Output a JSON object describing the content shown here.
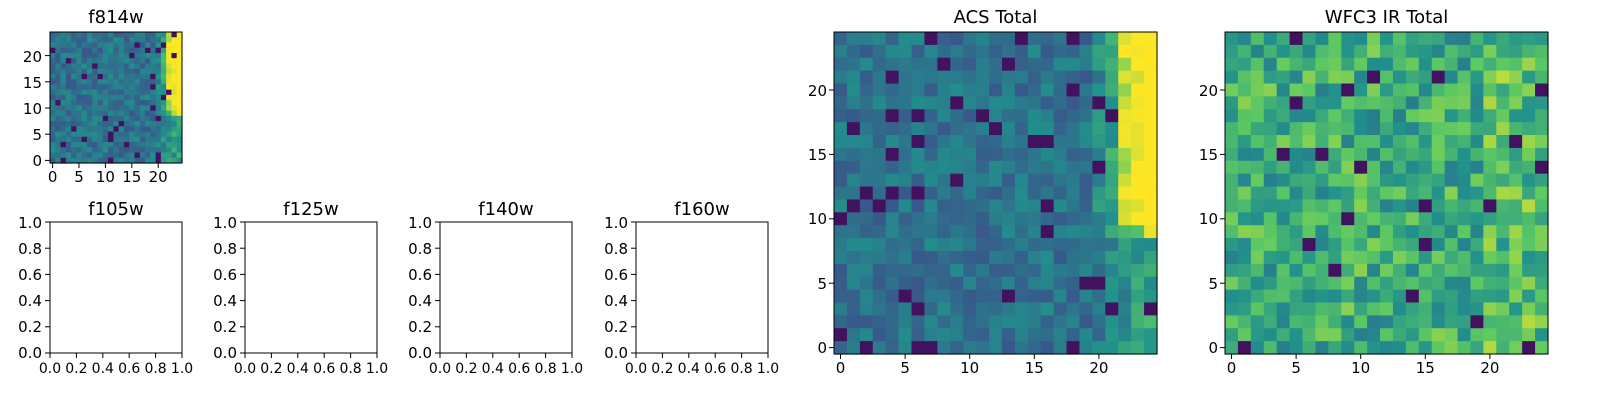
{
  "chart_data": [
    {
      "type": "heatmap",
      "title": "f814w",
      "colormap": "viridis",
      "x_ticks": [
        "0",
        "5",
        "10",
        "15",
        "20"
      ],
      "y_ticks": [
        "0",
        "5",
        "10",
        "15",
        "20"
      ],
      "xlim": [
        -0.5,
        24.5
      ],
      "ylim": [
        -0.5,
        24.5
      ],
      "grid": false
    },
    {
      "type": "heatmap",
      "title": "f105w",
      "empty": true,
      "x_ticks": [
        "0.0",
        "0.2",
        "0.4",
        "0.6",
        "0.8",
        "1.0"
      ],
      "y_ticks": [
        "0.0",
        "0.2",
        "0.4",
        "0.6",
        "0.8",
        "1.0"
      ],
      "xlim": [
        0,
        1
      ],
      "ylim": [
        0,
        1
      ]
    },
    {
      "type": "heatmap",
      "title": "f125w",
      "empty": true,
      "x_ticks": [
        "0.0",
        "0.2",
        "0.4",
        "0.6",
        "0.8",
        "1.0"
      ],
      "y_ticks": [
        "0.0",
        "0.2",
        "0.4",
        "0.6",
        "0.8",
        "1.0"
      ],
      "xlim": [
        0,
        1
      ],
      "ylim": [
        0,
        1
      ]
    },
    {
      "type": "heatmap",
      "title": "f140w",
      "empty": true,
      "x_ticks": [
        "0.0",
        "0.2",
        "0.4",
        "0.6",
        "0.8",
        "1.0"
      ],
      "y_ticks": [
        "0.0",
        "0.2",
        "0.4",
        "0.6",
        "0.8",
        "1.0"
      ],
      "xlim": [
        0,
        1
      ],
      "ylim": [
        0,
        1
      ]
    },
    {
      "type": "heatmap",
      "title": "f160w",
      "empty": true,
      "x_ticks": [
        "0.0",
        "0.2",
        "0.4",
        "0.6",
        "0.8",
        "1.0"
      ],
      "y_ticks": [
        "0.0",
        "0.2",
        "0.4",
        "0.6",
        "0.8",
        "1.0"
      ],
      "xlim": [
        0,
        1
      ],
      "ylim": [
        0,
        1
      ]
    },
    {
      "type": "heatmap",
      "title": "ACS Total",
      "colormap": "viridis",
      "x_ticks": [
        "0",
        "5",
        "10",
        "15",
        "20"
      ],
      "y_ticks": [
        "0",
        "5",
        "10",
        "15",
        "20"
      ],
      "xlim": [
        -0.5,
        24.5
      ],
      "ylim": [
        -0.5,
        24.5
      ],
      "grid": false
    },
    {
      "type": "heatmap",
      "title": "WFC3 IR Total",
      "colormap": "viridis",
      "x_ticks": [
        "0",
        "5",
        "10",
        "15",
        "20"
      ],
      "y_ticks": [
        "0",
        "5",
        "10",
        "15",
        "20"
      ],
      "xlim": [
        -0.5,
        24.5
      ],
      "ylim": [
        -0.5,
        24.5
      ],
      "grid": false
    }
  ],
  "colors": {
    "viridis": [
      "#440154",
      "#3b528b",
      "#21918c",
      "#5ec962",
      "#fde725"
    ],
    "axes": "#000000",
    "background": "#ffffff"
  }
}
